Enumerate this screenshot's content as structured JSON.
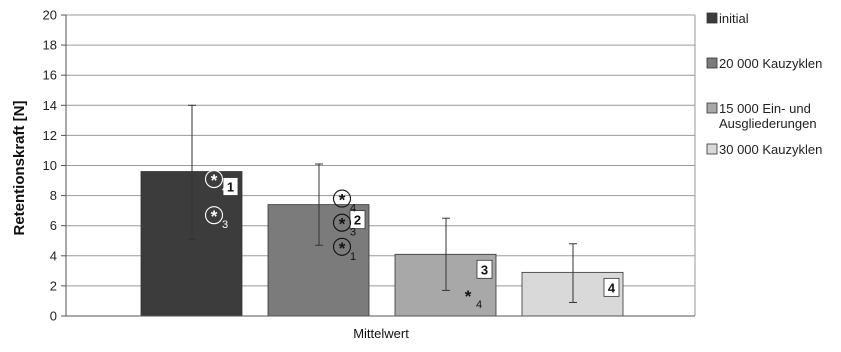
{
  "chart_data": {
    "type": "bar",
    "categories": [
      "Mittelwert"
    ],
    "xlabel": "Mittelwert",
    "ylabel": "Retentionskraft [N]",
    "ylim": [
      0,
      20
    ],
    "yticks": [
      0,
      2,
      4,
      6,
      8,
      10,
      12,
      14,
      16,
      18,
      20
    ],
    "grid": true,
    "legend_position": "right",
    "series": [
      {
        "name": "initial",
        "values": [
          9.6
        ],
        "error_low": 5.1,
        "error_high": 14.0,
        "color": "#3c3c3c",
        "bar_label": "1",
        "annotations": [
          {
            "symbol": "*",
            "ref": "3",
            "circled": true
          },
          {
            "symbol": "*",
            "ref": "4",
            "circled": true
          }
        ]
      },
      {
        "name": "20 000 Kauzyklen",
        "values": [
          7.4
        ],
        "error_low": 4.7,
        "error_high": 10.1,
        "color": "#7b7b7b",
        "bar_label": "2",
        "annotations": [
          {
            "symbol": "*",
            "ref": "1",
            "circled": true
          },
          {
            "symbol": "*",
            "ref": "3",
            "circled": true
          },
          {
            "symbol": "*",
            "ref": "4",
            "circled": true
          }
        ]
      },
      {
        "name": "15 000 Ein- und Ausgliederungen",
        "values": [
          4.1
        ],
        "error_low": 1.7,
        "error_high": 6.5,
        "color": "#a8a8a8",
        "bar_label": "3",
        "annotations": [
          {
            "symbol": "*",
            "ref": "4",
            "circled": false
          }
        ]
      },
      {
        "name": "30 000 Kauzyklen",
        "values": [
          2.9
        ],
        "error_low": 0.9,
        "error_high": 4.8,
        "color": "#d9d9d9",
        "bar_label": "4",
        "annotations": []
      }
    ],
    "legend": [
      {
        "lines": [
          "initial"
        ]
      },
      {
        "lines": [
          "20 000 Kauzyklen"
        ]
      },
      {
        "lines": [
          "15 000 Ein- und",
          "Ausgliederungen"
        ]
      },
      {
        "lines": [
          "30 000 Kauzyklen"
        ]
      }
    ]
  }
}
